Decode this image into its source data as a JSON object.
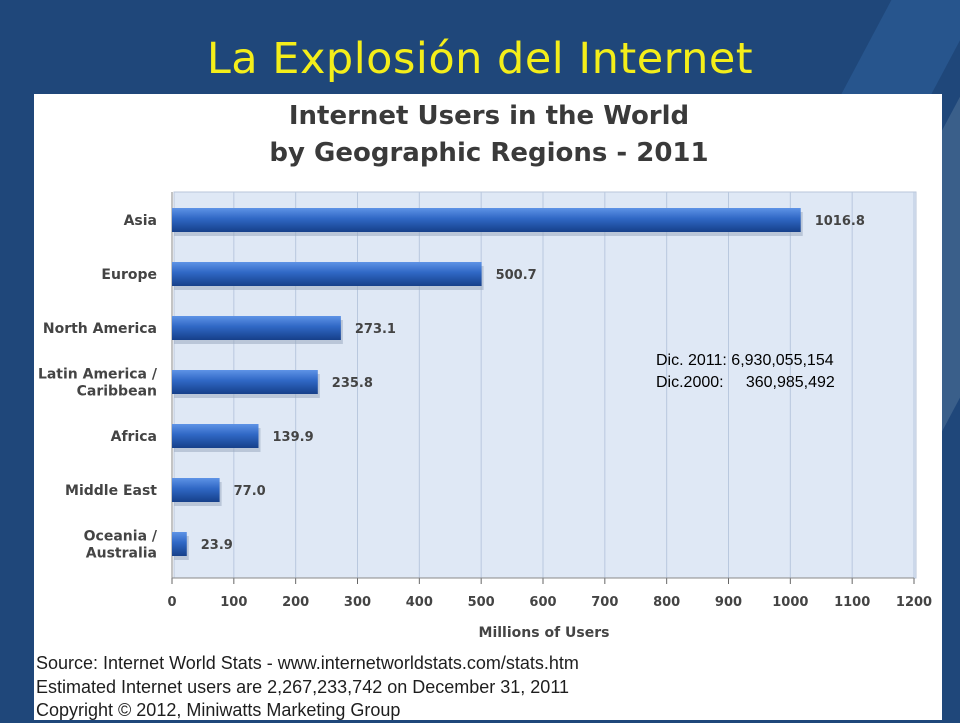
{
  "slide": {
    "title": "La Explosión del Internet",
    "colors": {
      "background": "#1f477a",
      "title": "#f4ee1a",
      "bar": "#2f67c4"
    }
  },
  "chart_data": {
    "type": "bar",
    "orientation": "horizontal",
    "title_lines": [
      "Internet Users in the World",
      "by Geographic Regions - 2011"
    ],
    "categories": [
      [
        "Asia"
      ],
      [
        "Europe"
      ],
      [
        "North America"
      ],
      [
        "Latin America /",
        "Caribbean"
      ],
      [
        "Africa"
      ],
      [
        "Middle East"
      ],
      [
        "Oceania  /",
        "Australia"
      ]
    ],
    "values": [
      1016.8,
      500.7,
      273.1,
      235.8,
      139.9,
      77.0,
      23.9
    ],
    "value_labels": [
      "1016.8",
      "500.7",
      "273.1",
      "235.8",
      "139.9",
      "77.0",
      "23.9"
    ],
    "xlim": [
      0,
      1200
    ],
    "xticks": [
      0,
      100,
      200,
      300,
      400,
      500,
      600,
      700,
      800,
      900,
      1000,
      1100,
      1200
    ],
    "xlabel": "Millions of Users",
    "grid": true
  },
  "note": {
    "line1": "Dic. 2011: 6,930,055,154",
    "line2": "Dic.2000:     360,985,492"
  },
  "footer": {
    "source": "Source: Internet World Stats - www.internetworldstats.com/stats.htm",
    "estimate": "Estimated Internet users are 2,267,233,742 on December 31, 2011",
    "copyright": "Copyright © 2012, Miniwatts Marketing Group"
  }
}
